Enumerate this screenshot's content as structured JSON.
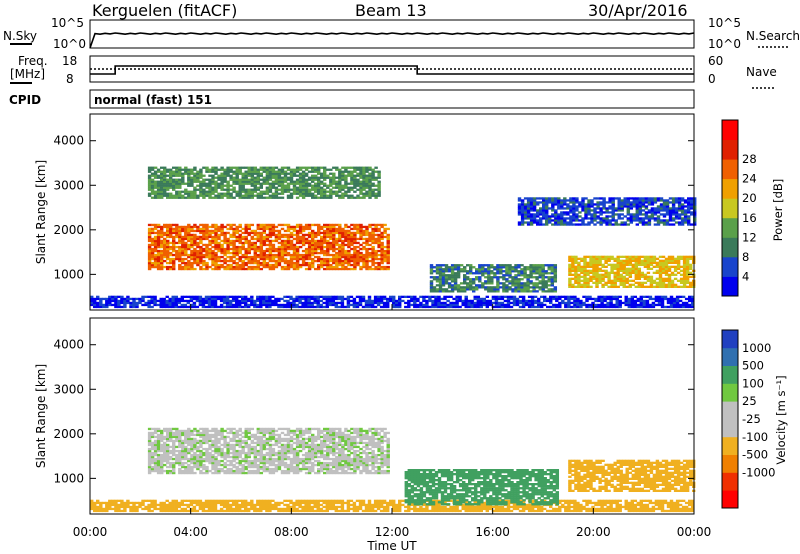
{
  "header": {
    "station": "Kerguelen (fitACF)",
    "beam": "Beam 13",
    "date": "30/Apr/2016"
  },
  "panels": {
    "nsky": {
      "label": "N.Sky",
      "ticks": [
        "10^5",
        "10^0"
      ]
    },
    "nsearch": {
      "label": "N.Search",
      "ticks": [
        "10^5",
        "10^0"
      ]
    },
    "freq": {
      "label_line1": "Freq.",
      "label_line2": "[MHz]",
      "ticks": [
        "18",
        "8"
      ]
    },
    "nave": {
      "label": "Nave",
      "ticks": [
        "60",
        "0"
      ]
    },
    "cpid": {
      "label": "CPID",
      "value": "normal (fast) 151"
    }
  },
  "colors": {
    "power": [
      "#0000ee",
      "#1844cc",
      "#3a7a5a",
      "#5aa04a",
      "#c8c820",
      "#f0a000",
      "#f06000",
      "#e02000",
      "#ff0000"
    ],
    "velocity": [
      "#2040c0",
      "#3070b0",
      "#40a060",
      "#70c840",
      "#c0c0c0",
      "#c0c0c0",
      "#f0b020",
      "#f08000",
      "#f03000",
      "#ff0000"
    ]
  },
  "chart_data": [
    {
      "type": "heatmap",
      "title": "Power",
      "xlabel": "",
      "ylabel": "Slant Range [km]",
      "xlim": [
        "00:00",
        "24:00"
      ],
      "ylim": [
        200,
        4600
      ],
      "y_ticks": [
        1000,
        2000,
        3000,
        4000
      ],
      "colorbar": {
        "label": "Power [dB]",
        "ticks": [
          4,
          8,
          12,
          16,
          20,
          24,
          28
        ]
      },
      "regions": [
        {
          "name": "E-region",
          "t0": 0.0,
          "t1": 24.0,
          "r0": 250,
          "r1": 500,
          "v": 3
        },
        {
          "name": "F-region-day",
          "t0": 2.3,
          "t1": 11.8,
          "r0": 1100,
          "r1": 2100,
          "v": 26
        },
        {
          "name": "upper-fragments",
          "t0": 2.3,
          "t1": 11.5,
          "r0": 2700,
          "r1": 3400,
          "v": 12
        },
        {
          "name": "band-16-18",
          "t0": 13.5,
          "t1": 18.5,
          "r0": 600,
          "r1": 1200,
          "v": 10
        },
        {
          "name": "band-19-24",
          "t0": 19.0,
          "t1": 24.0,
          "r0": 700,
          "r1": 1400,
          "v": 20
        },
        {
          "name": "far-20-24",
          "t0": 17.0,
          "t1": 24.0,
          "r0": 2100,
          "r1": 2700,
          "v": 6
        }
      ]
    },
    {
      "type": "heatmap",
      "title": "Velocity",
      "xlabel": "Time UT",
      "ylabel": "Slant Range [km]",
      "xlim": [
        "00:00",
        "24:00"
      ],
      "ylim": [
        200,
        4600
      ],
      "x_ticks": [
        "00:00",
        "04:00",
        "08:00",
        "12:00",
        "16:00",
        "20:00",
        "00:00"
      ],
      "y_ticks": [
        1000,
        2000,
        3000,
        4000
      ],
      "colorbar": {
        "label": "Velocity [m s⁻¹]",
        "ticks": [
          1000,
          500,
          100,
          25,
          -25,
          -100,
          -500,
          -1000
        ]
      },
      "regions": [
        {
          "name": "E-region",
          "t0": 0.0,
          "t1": 24.0,
          "r0": 250,
          "r1": 500,
          "v": -150
        },
        {
          "name": "F-region-day",
          "t0": 2.3,
          "t1": 11.8,
          "r0": 1100,
          "r1": 2100,
          "v": 0
        },
        {
          "name": "band-16-18",
          "t0": 12.5,
          "t1": 18.5,
          "r0": 400,
          "r1": 1200,
          "v": 150
        },
        {
          "name": "band-19-24",
          "t0": 19.0,
          "t1": 24.0,
          "r0": 700,
          "r1": 1400,
          "v": -300
        }
      ]
    }
  ]
}
